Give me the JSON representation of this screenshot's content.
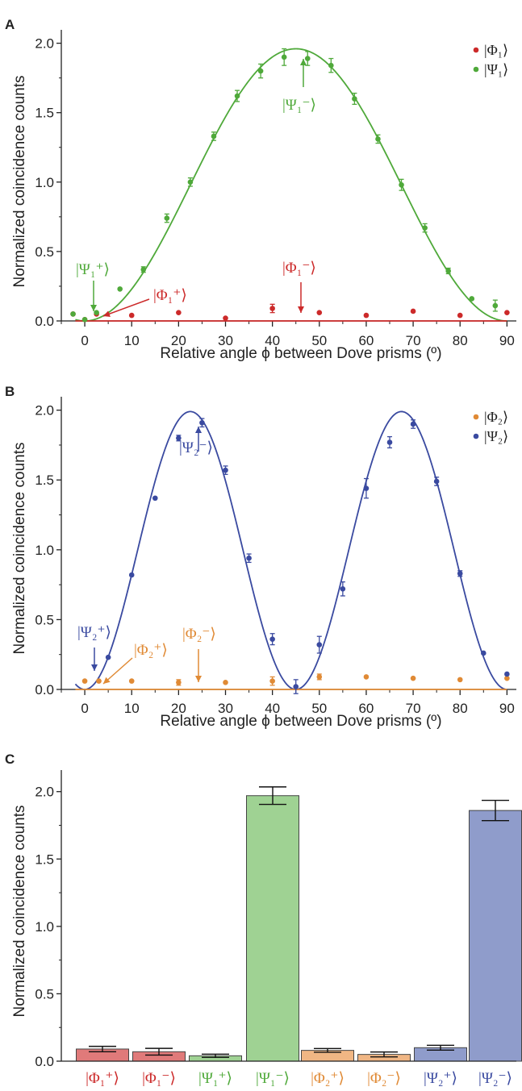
{
  "chart_data": [
    {
      "panel": "A",
      "type": "scatter",
      "xlabel": "Relative angle ϕ between Dove prisms (º)",
      "ylabel": "Normalized coincidence counts",
      "xlim": [
        -5,
        92
      ],
      "ylim": [
        0,
        2.05
      ],
      "xticks": [
        0,
        10,
        20,
        30,
        40,
        50,
        60,
        70,
        80,
        90
      ],
      "yticks": [
        "0.0",
        "0.5",
        "1.0",
        "1.5",
        "2.0"
      ],
      "fits": [
        {
          "series": "|Ψ₁⟩",
          "color": "#4fa93a",
          "formula": "1.96*sin^2(2x)",
          "amplitude": 1.96,
          "frequency": 2
        },
        {
          "series": "|Φ₁⟩",
          "color": "#cc2a2a",
          "formula": "0",
          "amplitude": 0.0,
          "frequency": 2
        }
      ],
      "series": [
        {
          "name": "|Φ₁⟩",
          "color": "#cc2a2a",
          "points": [
            [
              -2.5,
              0.05
            ],
            [
              0,
              0.01
            ],
            [
              2.5,
              0.05
            ],
            [
              10,
              0.04
            ],
            [
              20,
              0.06
            ],
            [
              30,
              0.02
            ],
            [
              40,
              0.09
            ],
            [
              50,
              0.06
            ],
            [
              60,
              0.04
            ],
            [
              70,
              0.07
            ],
            [
              80,
              0.04
            ],
            [
              90,
              0.06
            ]
          ],
          "errors": [
            0.01,
            0.01,
            0.01,
            0.01,
            0.01,
            0.01,
            0.03,
            0.01,
            0.01,
            0.01,
            0.01,
            0.01
          ]
        },
        {
          "name": "|Ψ₁⟩",
          "color": "#4fa93a",
          "points": [
            [
              -2.5,
              0.05
            ],
            [
              0,
              0.01
            ],
            [
              2.5,
              0.06
            ],
            [
              7.5,
              0.23
            ],
            [
              12.5,
              0.37
            ],
            [
              17.5,
              0.74
            ],
            [
              22.5,
              1.0
            ],
            [
              27.5,
              1.33
            ],
            [
              32.5,
              1.62
            ],
            [
              37.5,
              1.8
            ],
            [
              42.5,
              1.9
            ],
            [
              47.5,
              1.89
            ],
            [
              52.5,
              1.84
            ],
            [
              57.5,
              1.6
            ],
            [
              62.5,
              1.31
            ],
            [
              67.5,
              0.98
            ],
            [
              72.5,
              0.67
            ],
            [
              77.5,
              0.36
            ],
            [
              82.5,
              0.16
            ],
            [
              87.5,
              0.11
            ]
          ],
          "errors": [
            0.01,
            0.01,
            0.01,
            0.01,
            0.02,
            0.03,
            0.03,
            0.03,
            0.04,
            0.05,
            0.06,
            0.05,
            0.05,
            0.04,
            0.03,
            0.04,
            0.03,
            0.02,
            0.01,
            0.04
          ]
        }
      ],
      "annotations": [
        {
          "text": "|Ψ₁⁺⟩",
          "color": "#4fa93a"
        },
        {
          "text": "|Φ₁⁺⟩",
          "color": "#cc2a2a"
        },
        {
          "text": "|Φ₁⁻⟩",
          "color": "#cc2a2a"
        },
        {
          "text": "|Ψ₁⁻⟩",
          "color": "#4fa93a"
        }
      ],
      "legend": "top-right"
    },
    {
      "panel": "B",
      "type": "scatter",
      "xlabel": "Relative angle ϕ between Dove prisms (º)",
      "ylabel": "Normalized coincidence counts",
      "xlim": [
        -5,
        92
      ],
      "ylim": [
        0,
        2.05
      ],
      "xticks": [
        0,
        10,
        20,
        30,
        40,
        50,
        60,
        70,
        80,
        90
      ],
      "yticks": [
        "0.0",
        "0.5",
        "1.0",
        "1.5",
        "2.0"
      ],
      "fits": [
        {
          "series": "|Ψ₂⟩",
          "color": "#3a4aa0",
          "formula": "1.99*sin^2(4x)",
          "amplitude": 1.99,
          "frequency": 4
        },
        {
          "series": "|Φ₂⟩",
          "color": "#e08a35",
          "formula": "0",
          "amplitude": 0.0,
          "frequency": 4
        }
      ],
      "series": [
        {
          "name": "|Φ₂⟩",
          "color": "#e08a35",
          "points": [
            [
              0,
              0.06
            ],
            [
              3,
              0.06
            ],
            [
              10,
              0.06
            ],
            [
              20,
              0.05
            ],
            [
              30,
              0.05
            ],
            [
              40,
              0.06
            ],
            [
              50,
              0.09
            ],
            [
              60,
              0.09
            ],
            [
              70,
              0.08
            ],
            [
              80,
              0.07
            ],
            [
              90,
              0.08
            ]
          ],
          "errors": [
            0.01,
            0.01,
            0.01,
            0.02,
            0.01,
            0.03,
            0.02,
            0.01,
            0.01,
            0.01,
            0.01
          ]
        },
        {
          "name": "|Ψ₂⟩",
          "color": "#3a4aa0",
          "points": [
            [
              5,
              0.23
            ],
            [
              10,
              0.82
            ],
            [
              15,
              1.37
            ],
            [
              20,
              1.8
            ],
            [
              25,
              1.91
            ],
            [
              30,
              1.57
            ],
            [
              35,
              0.94
            ],
            [
              40,
              0.36
            ],
            [
              45,
              0.02
            ],
            [
              50,
              0.32
            ],
            [
              55,
              0.72
            ],
            [
              60,
              1.44
            ],
            [
              65,
              1.77
            ],
            [
              70,
              1.9
            ],
            [
              75,
              1.49
            ],
            [
              80,
              0.83
            ],
            [
              85,
              0.26
            ],
            [
              90,
              0.11
            ]
          ],
          "errors": [
            0.01,
            0.01,
            0.01,
            0.02,
            0.03,
            0.03,
            0.03,
            0.04,
            0.05,
            0.06,
            0.05,
            0.07,
            0.04,
            0.03,
            0.03,
            0.02,
            0.01,
            0.01
          ]
        }
      ],
      "annotations": [
        {
          "text": "|Ψ₂⁺⟩",
          "color": "#3a4aa0"
        },
        {
          "text": "|Φ₂⁺⟩",
          "color": "#e08a35"
        },
        {
          "text": "|Φ₂⁻⟩",
          "color": "#e08a35"
        },
        {
          "text": "|Ψ₂⁻⟩",
          "color": "#3a4aa0"
        }
      ],
      "legend": "top-right"
    },
    {
      "panel": "C",
      "type": "bar",
      "ylabel": "Normalized coincidence counts",
      "ylim": [
        0,
        2.13
      ],
      "yticks": [
        "0.0",
        "0.5",
        "1.0",
        "1.5",
        "2.0"
      ],
      "categories": [
        "|Φ₁⁺⟩",
        "|Φ₁⁻⟩",
        "|Ψ₁⁺⟩",
        "|Ψ₁⁻⟩",
        "|Φ₂⁺⟩",
        "|Φ₂⁻⟩",
        "|Ψ₂⁺⟩",
        "|Ψ₂⁻⟩"
      ],
      "values": [
        0.09,
        0.07,
        0.04,
        1.97,
        0.08,
        0.05,
        0.1,
        1.86
      ],
      "errors": [
        0.02,
        0.025,
        0.012,
        0.065,
        0.014,
        0.018,
        0.018,
        0.075
      ],
      "colors": [
        "#e07a7a",
        "#e07a7a",
        "#9fd293",
        "#9fd293",
        "#f0b684",
        "#f0b684",
        "#8f9ccb",
        "#8f9ccb"
      ],
      "label_colors": [
        "#cc2a2a",
        "#cc2a2a",
        "#4fa93a",
        "#4fa93a",
        "#e08a35",
        "#e08a35",
        "#3a4aa0",
        "#3a4aa0"
      ]
    }
  ],
  "panels": {
    "a": {
      "label": "A",
      "xlabel": "Relative angle ϕ between Dove prisms (º)",
      "ylabel": "Normalized coincidence counts"
    },
    "b": {
      "label": "B",
      "xlabel": "Relative angle ϕ between Dove prisms (º)",
      "ylabel": "Normalized coincidence counts"
    },
    "c": {
      "label": "C",
      "ylabel": "Normalized coincidence counts"
    }
  }
}
